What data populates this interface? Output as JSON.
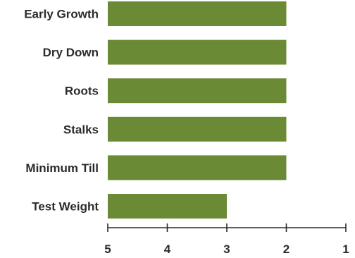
{
  "chart_data": {
    "type": "bar",
    "orientation": "horizontal",
    "categories": [
      "Early Growth",
      "Dry Down",
      "Roots",
      "Stalks",
      "Minimum Till",
      "Test Weight"
    ],
    "values": [
      2,
      2,
      2,
      2,
      2,
      3
    ],
    "xlim": [
      5,
      1
    ],
    "x_ticks": [
      "5",
      "4",
      "3",
      "2",
      "1"
    ],
    "bar_color": "#6a8a35",
    "axis_color": "#2b2b2b",
    "grid": false,
    "legend": "none"
  }
}
